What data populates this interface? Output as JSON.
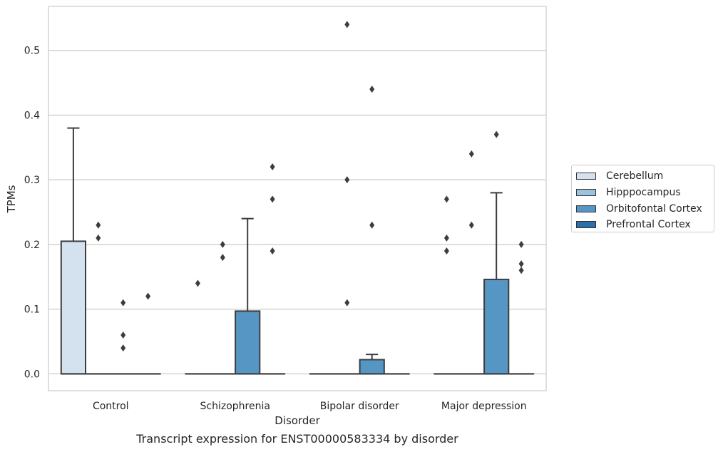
{
  "caption": "Transcript expression for ENST00000583334 by disorder",
  "legend": [
    {
      "label": "Cerebellum",
      "color": "#d4e2f0"
    },
    {
      "label": "Hipppocampus",
      "color": "#9cc3de"
    },
    {
      "label": "Orbitofontal Cortex",
      "color": "#5596c4"
    },
    {
      "label": "Prefrontal Cortex",
      "color": "#2c70aa"
    }
  ],
  "chart_data": {
    "type": "box",
    "xlabel": "Disorder",
    "ylabel": "TPMs",
    "categories": [
      "Control",
      "Schizophrenia",
      "Bipolar disorder",
      "Major depression"
    ],
    "ylim": [
      -0.026,
      0.568
    ],
    "yticks": [
      0.0,
      0.1,
      0.2,
      0.3,
      0.4,
      0.5
    ],
    "ytick_labels": [
      "0.0",
      "0.1",
      "0.2",
      "0.3",
      "0.4",
      "0.5"
    ],
    "grid": true,
    "legend_position": "right, outside plot",
    "series": [
      {
        "name": "Cerebellum",
        "color": "#d4e2f0",
        "boxes": [
          {
            "q1": 0,
            "median": 0,
            "q3": 0.205,
            "whisker_low": 0,
            "whisker_high": 0.38,
            "outliers": []
          },
          {
            "q1": 0,
            "median": 0,
            "q3": 0,
            "whisker_low": 0,
            "whisker_high": 0,
            "outliers": [
              0.14
            ]
          },
          {
            "q1": 0,
            "median": 0,
            "q3": 0,
            "whisker_low": 0,
            "whisker_high": 0,
            "outliers": []
          },
          {
            "q1": 0,
            "median": 0,
            "q3": 0,
            "whisker_low": 0,
            "whisker_high": 0,
            "outliers": [
              0.19,
              0.21,
              0.27
            ]
          }
        ]
      },
      {
        "name": "Hipppocampus",
        "color": "#9cc3de",
        "boxes": [
          {
            "q1": 0,
            "median": 0,
            "q3": 0,
            "whisker_low": 0,
            "whisker_high": 0,
            "outliers": [
              0.21,
              0.23
            ]
          },
          {
            "q1": 0,
            "median": 0,
            "q3": 0,
            "whisker_low": 0,
            "whisker_high": 0,
            "outliers": [
              0.18,
              0.2
            ]
          },
          {
            "q1": 0,
            "median": 0,
            "q3": 0,
            "whisker_low": 0,
            "whisker_high": 0,
            "outliers": [
              0.11,
              0.3,
              0.54
            ]
          },
          {
            "q1": 0,
            "median": 0,
            "q3": 0,
            "whisker_low": 0,
            "whisker_high": 0,
            "outliers": [
              0.23,
              0.34
            ]
          }
        ]
      },
      {
        "name": "Orbitofontal Cortex",
        "color": "#5596c4",
        "boxes": [
          {
            "q1": 0,
            "median": 0,
            "q3": 0,
            "whisker_low": 0,
            "whisker_high": 0,
            "outliers": [
              0.04,
              0.06,
              0.11
            ]
          },
          {
            "q1": 0,
            "median": 0,
            "q3": 0.097,
            "whisker_low": 0,
            "whisker_high": 0.24,
            "outliers": []
          },
          {
            "q1": 0,
            "median": 0,
            "q3": 0.022,
            "whisker_low": 0,
            "whisker_high": 0.03,
            "outliers": [
              0.23,
              0.44
            ]
          },
          {
            "q1": 0,
            "median": 0,
            "q3": 0.146,
            "whisker_low": 0,
            "whisker_high": 0.28,
            "outliers": [
              0.37
            ]
          }
        ]
      },
      {
        "name": "Prefrontal Cortex",
        "color": "#2c70aa",
        "boxes": [
          {
            "q1": 0,
            "median": 0,
            "q3": 0,
            "whisker_low": 0,
            "whisker_high": 0,
            "outliers": [
              0.12
            ]
          },
          {
            "q1": 0,
            "median": 0,
            "q3": 0,
            "whisker_low": 0,
            "whisker_high": 0,
            "outliers": [
              0.19,
              0.27,
              0.32
            ]
          },
          {
            "q1": 0,
            "median": 0,
            "q3": 0,
            "whisker_low": 0,
            "whisker_high": 0,
            "outliers": []
          },
          {
            "q1": 0,
            "median": 0,
            "q3": 0,
            "whisker_low": 0,
            "whisker_high": 0,
            "outliers": [
              0.16,
              0.17,
              0.2
            ]
          }
        ]
      }
    ]
  }
}
